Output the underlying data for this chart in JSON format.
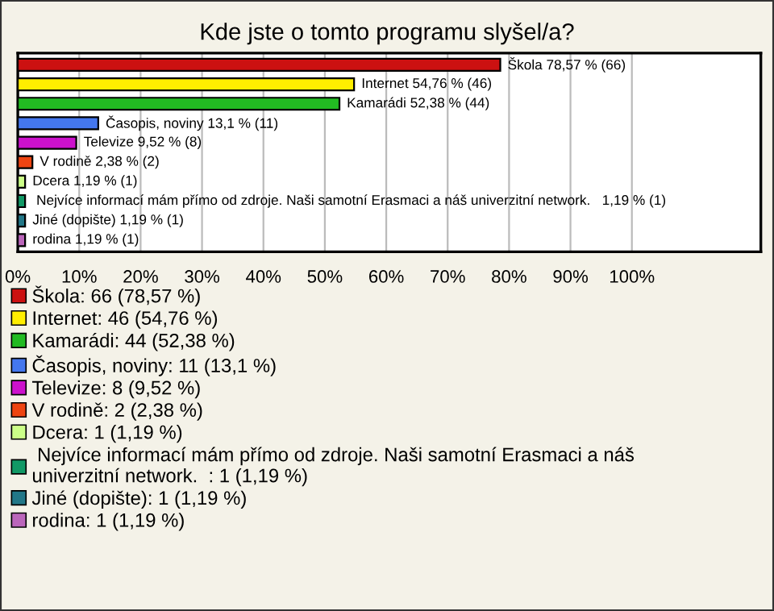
{
  "chart_data": {
    "type": "bar",
    "orientation": "horizontal",
    "title": "Kde jste o tomto programu slyšel/a?",
    "categories": [
      null,
      null,
      null,
      null,
      null,
      null,
      null,
      null,
      null,
      null
    ],
    "series": [
      {
        "name": "Škola: 66 (78,57 %)",
        "color": "#cc1111",
        "values": [
          78.57,
          null,
          null,
          null,
          null,
          null,
          null,
          null,
          null,
          null
        ],
        "value_labels": [
          "Škola 78,57 % (66)",
          null,
          null,
          null,
          null,
          null,
          null,
          null,
          null,
          null
        ]
      },
      {
        "name": "Internet: 46 (54,76 %)",
        "color": "#ffee00",
        "values": [
          null,
          54.76,
          null,
          null,
          null,
          null,
          null,
          null,
          null,
          null
        ],
        "value_labels": [
          null,
          "Internet 54,76 % (46)",
          null,
          null,
          null,
          null,
          null,
          null,
          null,
          null
        ]
      },
      {
        "name": "Kamarádi: 44 (52,38 %)",
        "color": "#22bb22",
        "values": [
          null,
          null,
          52.38,
          null,
          null,
          null,
          null,
          null,
          null,
          null
        ],
        "value_labels": [
          null,
          null,
          "Kamarádi 52,38 % (44)",
          null,
          null,
          null,
          null,
          null,
          null,
          null
        ]
      },
      {
        "name": "Časopis, noviny: 11 (13,1 %)",
        "color": "#4477ee",
        "values": [
          null,
          null,
          null,
          13.1,
          null,
          null,
          null,
          null,
          null,
          null
        ],
        "value_labels": [
          null,
          null,
          null,
          "Časopis, noviny 13,1 % (11)",
          null,
          null,
          null,
          null,
          null,
          null
        ]
      },
      {
        "name": "Televize: 8 (9,52 %)",
        "color": "#cc11cc",
        "values": [
          null,
          null,
          null,
          null,
          9.52,
          null,
          null,
          null,
          null,
          null
        ],
        "value_labels": [
          null,
          null,
          null,
          null,
          "Televize 9,52 % (8)",
          null,
          null,
          null,
          null,
          null
        ]
      },
      {
        "name": "V rodině: 2 (2,38 %)",
        "color": "#ee4411",
        "values": [
          null,
          null,
          null,
          null,
          null,
          2.38,
          null,
          null,
          null,
          null
        ],
        "value_labels": [
          null,
          null,
          null,
          null,
          null,
          "V rodině 2,38 % (2)",
          null,
          null,
          null,
          null
        ]
      },
      {
        "name": "Dcera: 1 (1,19 %)",
        "color": "#ccff88",
        "values": [
          null,
          null,
          null,
          null,
          null,
          null,
          1.19,
          null,
          null,
          null
        ],
        "value_labels": [
          null,
          null,
          null,
          null,
          null,
          null,
          "Dcera 1,19 % (1)",
          null,
          null,
          null
        ]
      },
      {
        "name": " Nejvíce informací mám přímo od zdroje. Naši samotní Erasmaci a náš\nuniverzitní network.  : 1 (1,19 %)",
        "color": "#119966",
        "values": [
          null,
          null,
          null,
          null,
          null,
          null,
          null,
          1.19,
          null,
          null
        ],
        "value_labels": [
          null,
          null,
          null,
          null,
          null,
          null,
          null,
          " Nejvíce informací mám přímo od zdroje. Naši samotní Erasmaci a náš univerzitní network.   1,19 % (1)",
          null,
          null
        ]
      },
      {
        "name": "Jiné (dopište): 1 (1,19 %)",
        "color": "#227788",
        "values": [
          null,
          null,
          null,
          null,
          null,
          null,
          null,
          null,
          1.19,
          null
        ],
        "value_labels": [
          null,
          null,
          null,
          null,
          null,
          null,
          null,
          null,
          "Jiné (dopište) 1,19 % (1)",
          null
        ]
      },
      {
        "name": "rodina: 1 (1,19 %)",
        "color": "#bb66bb",
        "values": [
          null,
          null,
          null,
          null,
          null,
          null,
          null,
          null,
          null,
          1.19
        ],
        "value_labels": [
          null,
          null,
          null,
          null,
          null,
          null,
          null,
          null,
          null,
          "rodina 1,19 % (1)"
        ]
      }
    ],
    "xlim": [
      0,
      121
    ],
    "xticks": [
      {
        "value": 0,
        "label": "0%"
      },
      {
        "value": 10,
        "label": "10%"
      },
      {
        "value": 20,
        "label": "20%"
      },
      {
        "value": 30,
        "label": "30%"
      },
      {
        "value": 40,
        "label": "40%"
      },
      {
        "value": 50,
        "label": "50%"
      },
      {
        "value": 60,
        "label": "60%"
      },
      {
        "value": 70,
        "label": "70%"
      },
      {
        "value": 80,
        "label": "80%"
      },
      {
        "value": 90,
        "label": "90%"
      },
      {
        "value": 100,
        "label": "100%"
      }
    ],
    "grid": "x",
    "legend": "bottom left"
  }
}
